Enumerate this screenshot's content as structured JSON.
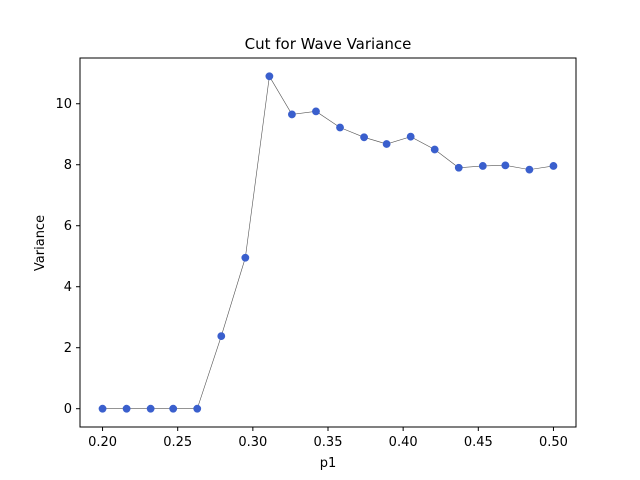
{
  "chart_data": {
    "type": "line",
    "title": "Cut for Wave Variance",
    "xlabel": "p1",
    "ylabel": "Variance",
    "xlim": [
      0.185,
      0.515
    ],
    "ylim": [
      -0.6,
      11.5
    ],
    "xticks": [
      0.2,
      0.25,
      0.3,
      0.35,
      0.4,
      0.45,
      0.5
    ],
    "xtick_labels": [
      "0.20",
      "0.25",
      "0.30",
      "0.35",
      "0.40",
      "0.45",
      "0.50"
    ],
    "yticks": [
      0,
      2,
      4,
      6,
      8,
      10
    ],
    "ytick_labels": [
      "0",
      "2",
      "4",
      "6",
      "8",
      "10"
    ],
    "grid": false,
    "series": [
      {
        "name": "Variance",
        "line_color": "#555555",
        "marker_color": "#3a5fcd",
        "x": [
          0.2,
          0.216,
          0.232,
          0.247,
          0.263,
          0.279,
          0.295,
          0.311,
          0.326,
          0.342,
          0.358,
          0.374,
          0.389,
          0.405,
          0.421,
          0.437,
          0.453,
          0.468,
          0.484,
          0.5
        ],
        "y": [
          0.0,
          0.0,
          0.0,
          0.0,
          0.0,
          2.38,
          4.95,
          10.9,
          9.65,
          9.75,
          9.22,
          8.9,
          8.68,
          8.92,
          8.5,
          7.9,
          7.96,
          7.98,
          7.84,
          7.96
        ]
      }
    ]
  }
}
